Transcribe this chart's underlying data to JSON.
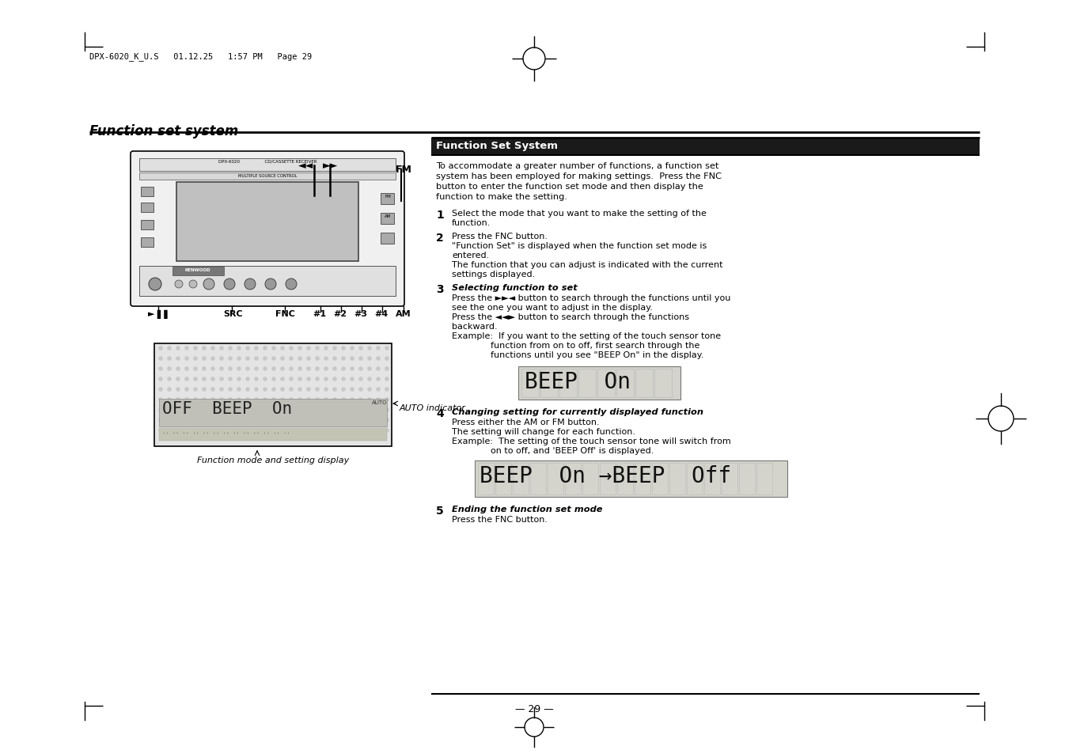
{
  "page_bg": "#ffffff",
  "header_text": "DPX-6020_K_U.S   01.12.25   1:57 PM   Page 29",
  "title": "Function set system",
  "section_header": "Function Set System",
  "section_header_bg": "#1a1a1a",
  "section_header_color": "#ffffff",
  "intro_text": "To accommodate a greater number of functions, a function set\nsystem has been employed for making settings.  Press the FNC\nbutton to enter the function set mode and then display the\nfunction to make the setting.",
  "steps": [
    {
      "num": "1",
      "bold": false,
      "text": "Select the mode that you want to make the setting of the\nfunction."
    },
    {
      "num": "2",
      "bold": false,
      "text": "Press the FNC button.\n\"Function Set\" is displayed when the function set mode is\nentered.\nThe function that you can adjust is indicated with the current\nsettings displayed."
    },
    {
      "num": "3",
      "bold": true,
      "italic_title": "Selecting function to set",
      "text": "Press the ►►◄ button to search through the functions until you\nsee the one you want to adjust in the display.\nPress the ◄◄► button to search through the functions\nbackward.\nExample:  If you want to the setting of the touch sensor tone\n              function from on to off, first search through the\n              functions until you see \"BEEP On\" in the display."
    },
    {
      "num": "4",
      "bold": true,
      "italic_title": "Changing setting for currently displayed function",
      "text": "Press either the AM or FM button.\nThe setting will change for each function.\nExample:  The setting of the touch sensor tone will switch from\n              on to off, and 'BEEP Off' is displayed."
    },
    {
      "num": "5",
      "bold": true,
      "italic_title": "Ending the function set mode",
      "text": "Press the FNC button."
    }
  ],
  "beep_on_display": "BEEP  On",
  "beep_transition_display": "BEEP  On →BEEP  Off",
  "bottom_label": "Function mode and setting display",
  "auto_indicator_label": "AUTO indicator",
  "page_number": "29",
  "fm_label": "FM",
  "am_label": "AM",
  "src_label": "SRC",
  "fnc_label": "FNC",
  "btn_labels": [
    "#1",
    "#2",
    "#3",
    "#4"
  ],
  "rewind_label": "◄◄",
  "ffwd_label": "►►"
}
